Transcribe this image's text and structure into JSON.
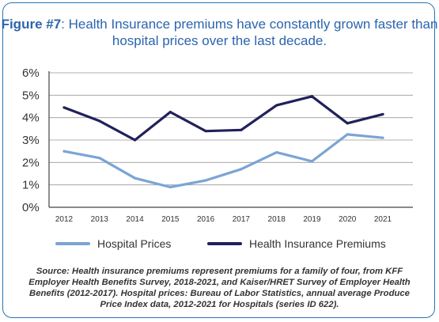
{
  "title": {
    "prefix": "Figure #7",
    "text": ": Health Insurance premiums have constantly grown faster than hospital prices over the last decade."
  },
  "chart_data": {
    "type": "line",
    "title": "Health Insurance premiums have constantly grown faster than hospital prices over the last decade.",
    "x": [
      "2012",
      "2013",
      "2014",
      "2015",
      "2016",
      "2017",
      "2018",
      "2019",
      "2020",
      "2021"
    ],
    "ylim": [
      0,
      6
    ],
    "yticks": [
      "0%",
      "1%",
      "2%",
      "3%",
      "4%",
      "5%",
      "6%"
    ],
    "series": [
      {
        "name": "Hospital Prices",
        "color": "#7ba4d4",
        "values": [
          2.5,
          2.2,
          1.3,
          0.9,
          1.2,
          1.7,
          2.45,
          2.05,
          3.25,
          3.1
        ]
      },
      {
        "name": "Health Insurance Premiums",
        "color": "#21215b",
        "values": [
          4.45,
          3.85,
          3.0,
          4.25,
          3.4,
          3.45,
          4.55,
          4.95,
          3.75,
          4.15
        ]
      }
    ],
    "grid": true,
    "legend_position": "bottom"
  },
  "source_text": "Source: Health insurance premiums represent premiums for a family of four, from KFF Employer Health Benefits Survey, 2018-2021, and Kaiser/HRET Survey of Employer Health Benefits (2012-2017). Hospital prices: Bureau of Labor Statistics, annual average Produce Price Index data, 2012-2021 for Hospitals (series ID 622)."
}
